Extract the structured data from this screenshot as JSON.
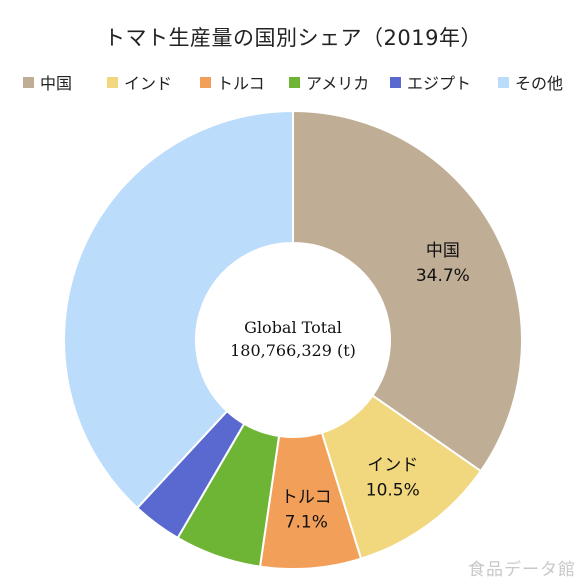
{
  "chart_data": {
    "type": "pie",
    "title": "トマト生産量の国別シェア（2019年）",
    "center_label": {
      "line1": "Global Total",
      "line2": "180,766,329 (t)"
    },
    "legend_placement": "top",
    "series": [
      {
        "name": "中国",
        "value": 34.7,
        "value_label": "34.7%",
        "color": "#bfad95",
        "shows_label": true
      },
      {
        "name": "インド",
        "value": 10.5,
        "value_label": "10.5%",
        "color": "#f1d87e",
        "shows_label": true
      },
      {
        "name": "トルコ",
        "value": 7.1,
        "value_label": "7.1%",
        "color": "#f29f5a",
        "shows_label": true
      },
      {
        "name": "アメリカ",
        "value": 6.1,
        "value_label": "",
        "color": "#6eb535",
        "shows_label": false
      },
      {
        "name": "エジプト",
        "value": 3.5,
        "value_label": "",
        "color": "#5a69cf",
        "shows_label": false
      },
      {
        "name": "その他",
        "value": 38.1,
        "value_label": "",
        "color": "#bcdcfc",
        "shows_label": false
      }
    ]
  },
  "watermark": "食品データ館"
}
